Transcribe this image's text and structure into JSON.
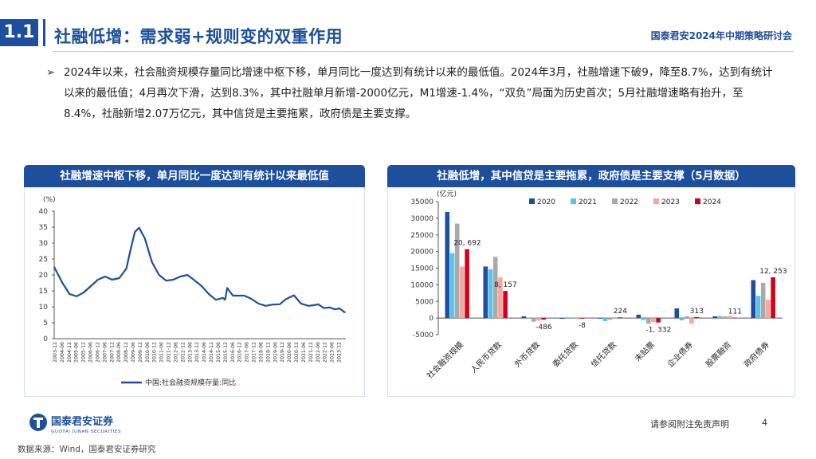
{
  "header": {
    "section_number": "1.1",
    "title": "社融低增：需求弱+规则变的双重作用",
    "event": "国泰君安2024年中期策略研讨会"
  },
  "bullet": {
    "text": "2024年以来，社会融资规模存量同比增速中枢下移，单月同比一度达到有统计以来的最低值。2024年3月，社融增速下破9，降至8.7%，达到有统计以来的最低值；4月再次下滑，达到8.3%，其中社融单月新增-2000亿元，M1增速-1.4%，“双负”局面为历史首次；5月社融增速略有抬升，至8.4%，社融新增2.07万亿元，其中信贷是主要拖累，政府债是主要支撑。"
  },
  "left_panel": {
    "title": "社融增速中枢下移，单月同比一度达到有统计以来最低值"
  },
  "right_panel": {
    "title": "社融低增，其中信贷是主要拖累，政府债是主要支撑（5月数据）"
  },
  "chart_data": [
    {
      "type": "line",
      "unit_label": "(%)",
      "ylim": [
        0,
        40
      ],
      "y_ticks": [
        0,
        5,
        10,
        15,
        20,
        25,
        30,
        35,
        40
      ],
      "x_ticks": [
        "2003-12",
        "2004-06",
        "2004-12",
        "2005-06",
        "2005-12",
        "2006-06",
        "2006-12",
        "2007-06",
        "2007-12",
        "2008-06",
        "2008-12",
        "2009-06",
        "2009-12",
        "2010-06",
        "2010-12",
        "2011-06",
        "2011-12",
        "2012-06",
        "2012-12",
        "2013-06",
        "2013-12",
        "2014-06",
        "2014-12",
        "2015-06",
        "2015-12",
        "2016-06",
        "2016-12",
        "2017-06",
        "2017-12",
        "2018-06",
        "2018-12",
        "2019-06",
        "2019-12",
        "2020-06",
        "2020-12",
        "2021-06",
        "2021-12",
        "2022-06",
        "2022-12",
        "2023-06",
        "2023-12"
      ],
      "series": [
        {
          "name": "中国:社会融资规模存量:同比",
          "color": "#1d4f9c",
          "x": [
            2003.92,
            2004.5,
            2005.0,
            2005.5,
            2006.0,
            2006.5,
            2007.0,
            2007.5,
            2008.0,
            2008.5,
            2009.0,
            2009.3,
            2009.6,
            2009.9,
            2010.3,
            2010.8,
            2011.3,
            2011.8,
            2012.3,
            2012.8,
            2013.3,
            2013.8,
            2014.3,
            2014.8,
            2015.3,
            2015.8,
            2015.95,
            2016.1,
            2016.5,
            2016.9,
            2017.3,
            2017.8,
            2018.3,
            2018.8,
            2019.3,
            2019.8,
            2020.2,
            2020.5,
            2020.8,
            2021.3,
            2021.8,
            2022.2,
            2022.5,
            2022.9,
            2023.3,
            2023.7,
            2024.0,
            2024.25,
            2024.33,
            2024.42
          ],
          "values": [
            22.5,
            17.5,
            14.0,
            13.3,
            14.5,
            16.5,
            18.5,
            19.5,
            18.5,
            19.0,
            22.0,
            28.0,
            33.5,
            34.8,
            31.5,
            24.0,
            20.0,
            18.2,
            18.5,
            19.5,
            20.0,
            18.3,
            16.5,
            14.0,
            12.2,
            12.8,
            12.2,
            15.9,
            13.5,
            13.5,
            13.5,
            12.5,
            11.0,
            10.3,
            10.7,
            10.8,
            12.3,
            13.0,
            13.6,
            11.0,
            10.3,
            10.5,
            10.8,
            9.6,
            9.8,
            9.2,
            9.5,
            8.7,
            8.3,
            8.4
          ]
        }
      ]
    },
    {
      "type": "bar",
      "unit_label": "(亿元)",
      "ylim": [
        -5000,
        35000
      ],
      "y_ticks": [
        -5000,
        0,
        5000,
        10000,
        15000,
        20000,
        25000,
        30000,
        35000
      ],
      "categories": [
        "社会融资规模",
        "人民币贷款",
        "外币贷款",
        "委托贷款",
        "信托贷款",
        "未贴票",
        "企业债券",
        "股票融资",
        "政府债券"
      ],
      "series": [
        {
          "name": "2020",
          "color": "#1d4f9c",
          "values": [
            31900,
            15500,
            500,
            -250,
            0,
            1000,
            2900,
            500,
            11400
          ]
        },
        {
          "name": "2021",
          "color": "#5bc3ea",
          "values": [
            19500,
            14700,
            200,
            -100,
            -900,
            -600,
            -700,
            600,
            6700
          ]
        },
        {
          "name": "2022",
          "color": "#a9a9a9",
          "values": [
            28400,
            18400,
            -1100,
            -100,
            -500,
            -1700,
            500,
            500,
            10600
          ]
        },
        {
          "name": "2023",
          "color": "#f0a9a0",
          "values": [
            15500,
            12200,
            -800,
            -300,
            -200,
            -1200,
            -1700,
            700,
            5500
          ]
        },
        {
          "name": "2024",
          "color": "#d0021b",
          "values": [
            20692,
            8157,
            -486,
            -8,
            224,
            -1332,
            313,
            111,
            12253
          ]
        }
      ],
      "labels": [
        {
          "text": "20, 692",
          "category": 0,
          "series": 4
        },
        {
          "text": "8, 157",
          "category": 1,
          "series": 4
        },
        {
          "text": "-486",
          "category": 2,
          "series": 4
        },
        {
          "text": "-8",
          "category": 3,
          "series": 4
        },
        {
          "text": "224",
          "category": 4,
          "series": 4
        },
        {
          "text": "-1, 332",
          "category": 5,
          "series": 4
        },
        {
          "text": "313",
          "category": 6,
          "series": 4
        },
        {
          "text": "111",
          "category": 7,
          "series": 4
        },
        {
          "text": "12, 253",
          "category": 8,
          "series": 4
        }
      ],
      "legend_position": "top"
    }
  ],
  "footer": {
    "logo_text": "国泰君安证券",
    "logo_subtext": "GUOTAI JUNAN SECURITIES",
    "disclaimer": "请参阅附注免责声明",
    "page_number": "4",
    "source": "数据来源：Wind，国泰君安证券研究"
  }
}
